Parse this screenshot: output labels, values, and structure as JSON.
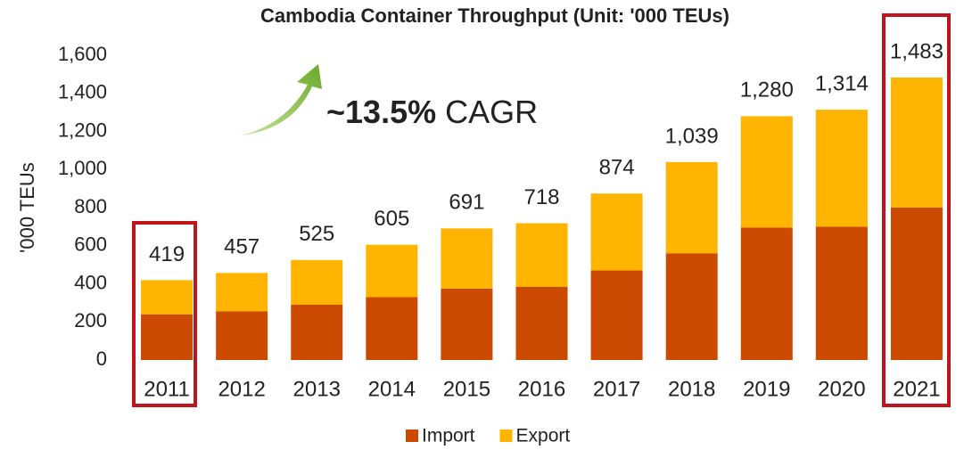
{
  "chart_data": {
    "type": "stacked_bar",
    "title": "Cambodia Container Throughput (Unit: '000 TEUs)",
    "y_label": "'000 TEUs",
    "annotation_bold": "~13.5%",
    "annotation_text": "CAGR",
    "categories": [
      "2011",
      "2012",
      "2013",
      "2014",
      "2015",
      "2016",
      "2017",
      "2018",
      "2019",
      "2020",
      "2021"
    ],
    "series": [
      {
        "name": "Import",
        "color": "#cc4a00",
        "values": [
          240,
          255,
          290,
          330,
          375,
          385,
          470,
          560,
          695,
          700,
          800
        ]
      },
      {
        "name": "Export",
        "color": "#ffb400",
        "values": [
          179,
          202,
          235,
          275,
          316,
          333,
          404,
          479,
          585,
          614,
          683
        ]
      }
    ],
    "totals": [
      419,
      457,
      525,
      605,
      691,
      718,
      874,
      {
        "value": 1039,
        "label": "1,039"
      },
      {
        "value": 1280,
        "label": "1,280"
      },
      {
        "value": 1314,
        "label": "1,314"
      },
      {
        "value": 1483,
        "label": "1,483"
      }
    ],
    "ylim": [
      0,
      1600
    ],
    "yticks": [
      0,
      200,
      400,
      600,
      800,
      {
        "value": 1000,
        "label": "1,000"
      },
      {
        "value": 1200,
        "label": "1,200"
      },
      {
        "value": 1400,
        "label": "1,400"
      },
      {
        "value": 1600,
        "label": "1,600"
      }
    ],
    "grid": false,
    "legend": "bottom"
  }
}
